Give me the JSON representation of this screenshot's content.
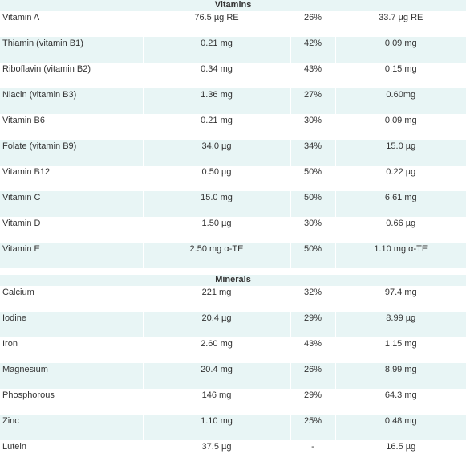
{
  "vitamins": {
    "title": "Vitamins",
    "rows": [
      [
        "Vitamin A",
        "76.5 µg RE",
        "26%",
        "33.7 µg RE"
      ],
      [
        "Thiamin (vitamin B1)",
        "0.21 mg",
        "42%",
        "0.09 mg"
      ],
      [
        "Riboflavin (vitamin B2)",
        "0.34 mg",
        "43%",
        "0.15 mg"
      ],
      [
        "Niacin (vitamin B3)",
        "1.36 mg",
        "27%",
        "0.60mg"
      ],
      [
        "Vitamin B6",
        "0.21 mg",
        "30%",
        "0.09 mg"
      ],
      [
        "Folate (vitamin B9)",
        "34.0 µg",
        "34%",
        "15.0 µg"
      ],
      [
        "Vitamin B12",
        "0.50 µg",
        "50%",
        "0.22 µg"
      ],
      [
        "Vitamin C",
        "15.0 mg",
        "50%",
        "6.61 mg"
      ],
      [
        "Vitamin D",
        "1.50 µg",
        "30%",
        "0.66 µg"
      ],
      [
        "Vitamin E",
        "2.50 mg α-TE",
        "50%",
        "1.10 mg α-TE"
      ]
    ]
  },
  "minerals": {
    "title": "Minerals",
    "rows": [
      [
        "Calcium",
        "221 mg",
        "32%",
        "97.4 mg"
      ],
      [
        "Iodine",
        "20.4 µg",
        "29%",
        "8.99 µg"
      ],
      [
        "Iron",
        "2.60 mg",
        "43%",
        "1.15 mg"
      ],
      [
        "Magnesium",
        "20.4 mg",
        "26%",
        "8.99 mg"
      ],
      [
        "Phosphorous",
        "146 mg",
        "29%",
        "64.3 mg"
      ],
      [
        "Zinc",
        "1.10 mg",
        "25%",
        "0.48 mg"
      ],
      [
        "Lutein",
        "37.5 µg",
        "-",
        "16.5 µg"
      ]
    ]
  },
  "colors": {
    "stripe": "#e8f5f5",
    "text": "#333333"
  }
}
